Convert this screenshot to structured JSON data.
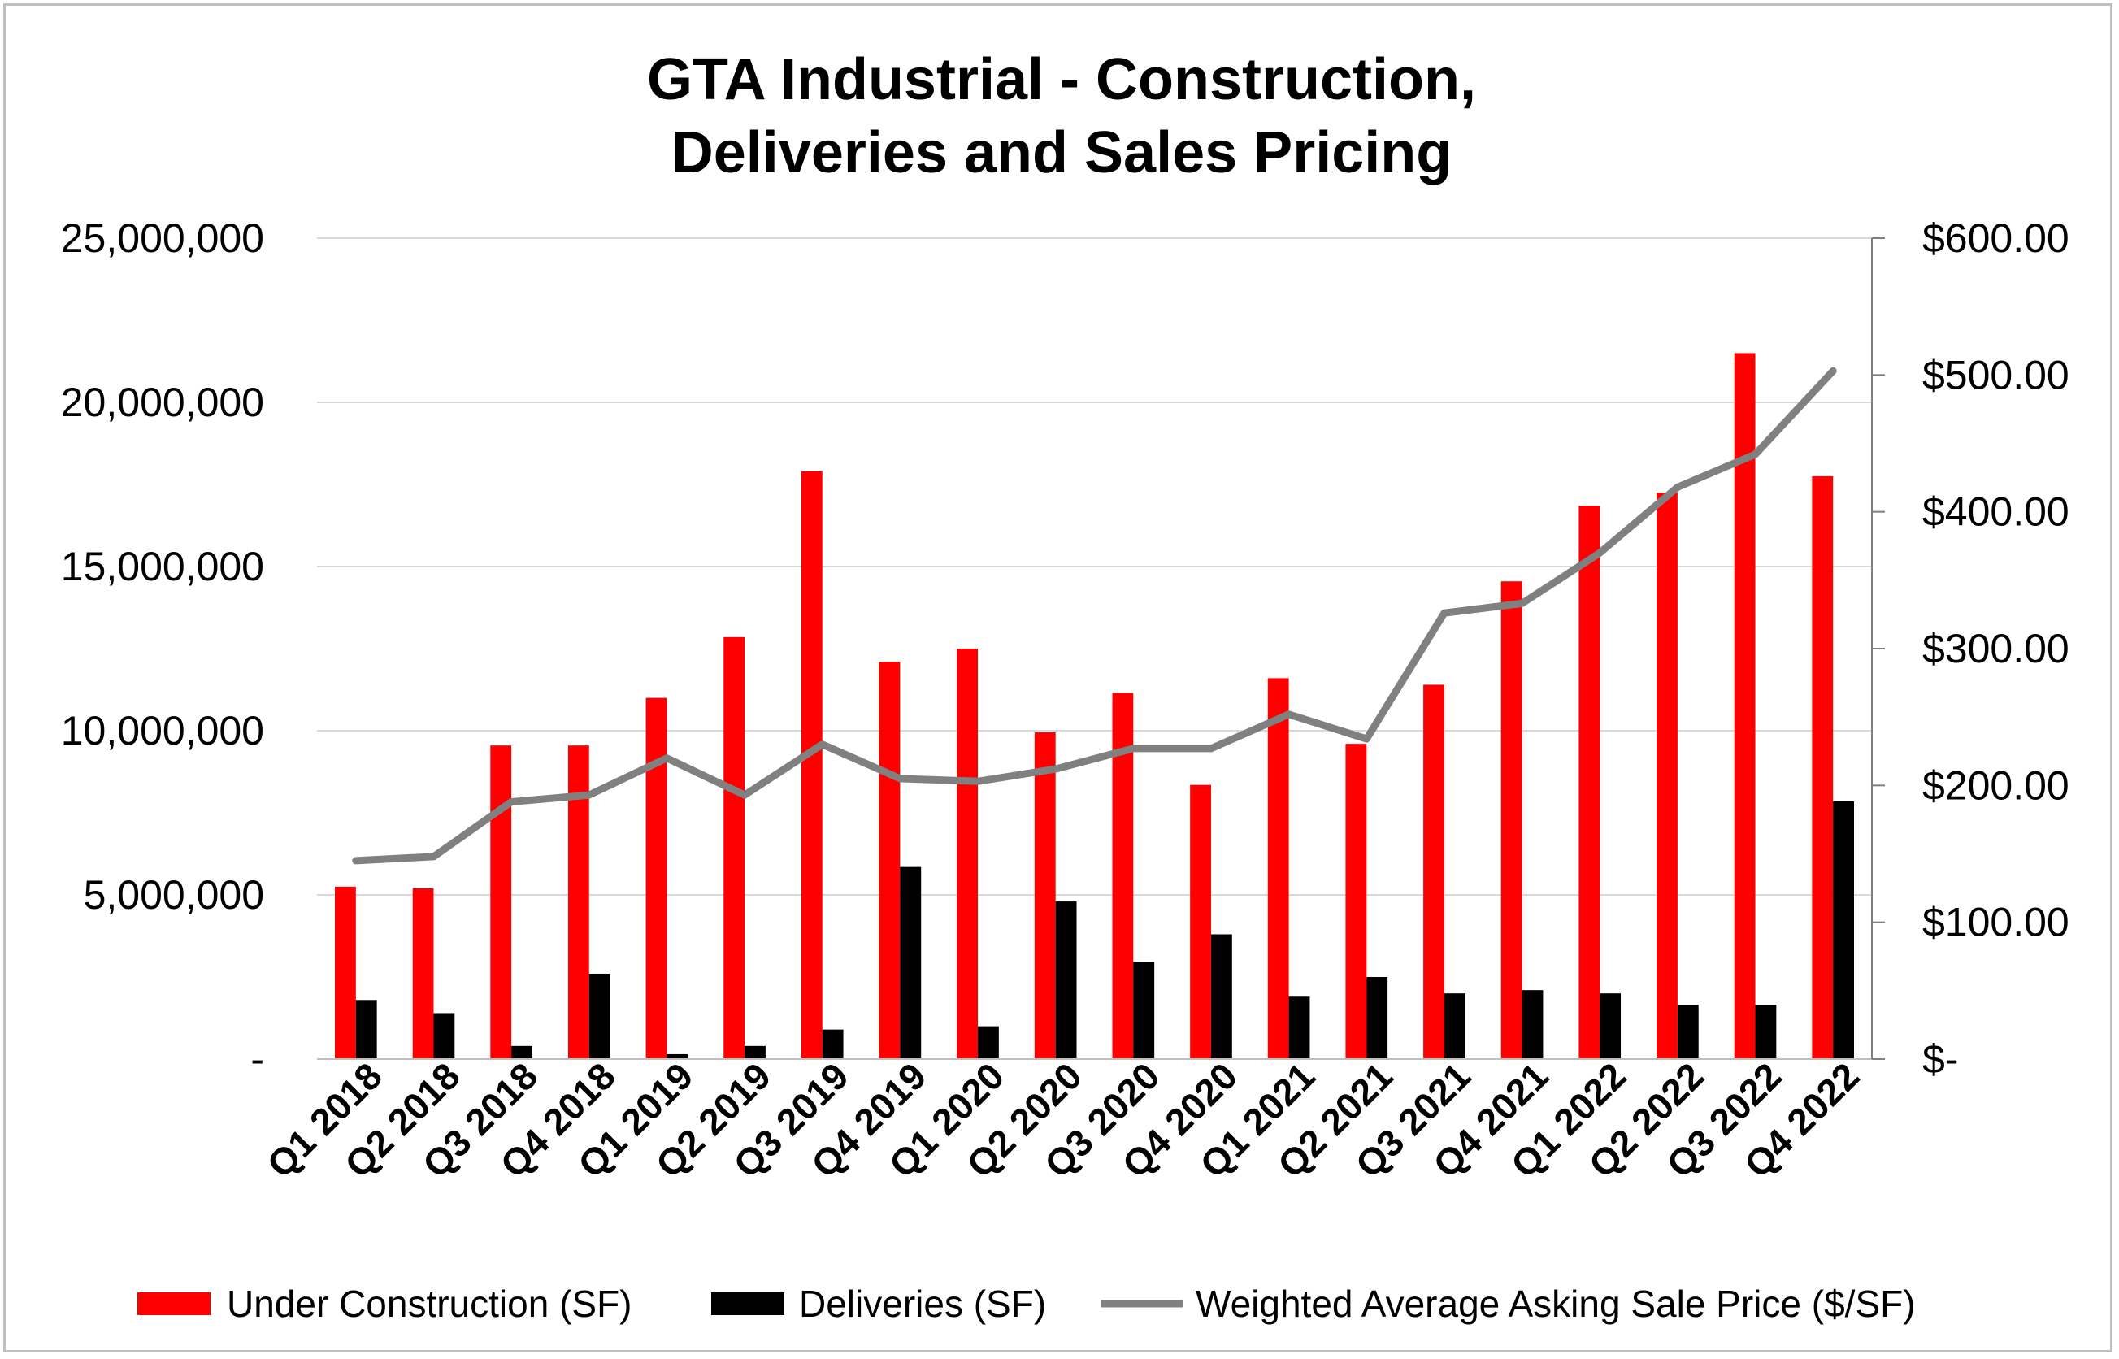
{
  "chart_data": {
    "type": "bar",
    "title_lines": [
      "GTA Industrial - Construction,",
      "Deliveries and Sales Pricing"
    ],
    "categories": [
      "Q1 2018",
      "Q2 2018",
      "Q3 2018",
      "Q4 2018",
      "Q1 2019",
      "Q2 2019",
      "Q3 2019",
      "Q4 2019",
      "Q1 2020",
      "Q2 2020",
      "Q3 2020",
      "Q4 2020",
      "Q1 2021",
      "Q2 2021",
      "Q3 2021",
      "Q4 2021",
      "Q1 2022",
      "Q2 2022",
      "Q3 2022",
      "Q4 2022"
    ],
    "series": [
      {
        "name": "Under Construction (SF)",
        "type": "bar",
        "axis": "left",
        "color": "#ff0000",
        "values": [
          5250000,
          5200000,
          9550000,
          9550000,
          11000000,
          12850000,
          17900000,
          12100000,
          12500000,
          9950000,
          11150000,
          8350000,
          11600000,
          9600000,
          11400000,
          14550000,
          16850000,
          17250000,
          21500000,
          17750000
        ]
      },
      {
        "name": "Deliveries (SF)",
        "type": "bar",
        "axis": "left",
        "color": "#000000",
        "values": [
          1800000,
          1400000,
          400000,
          2600000,
          150000,
          400000,
          900000,
          5850000,
          1000000,
          4800000,
          2950000,
          3800000,
          1900000,
          2500000,
          2000000,
          2100000,
          2000000,
          1650000,
          1650000,
          7850000
        ]
      },
      {
        "name": "Weighted Average Asking Sale Price ($/SF)",
        "type": "line",
        "axis": "right",
        "color": "#808080",
        "values": [
          145,
          148,
          188,
          193,
          220,
          193,
          230,
          205,
          203,
          212,
          227,
          227,
          252,
          234,
          326,
          333,
          370,
          418,
          442,
          503
        ]
      }
    ],
    "y_left": {
      "min": 0,
      "max": 25000000,
      "ticks": [
        0,
        5000000,
        10000000,
        15000000,
        20000000,
        25000000
      ],
      "tick_labels": [
        "-",
        "5,000,000",
        "10,000,000",
        "15,000,000",
        "20,000,000",
        "25,000,000"
      ]
    },
    "y_right": {
      "min": 0,
      "max": 600,
      "ticks": [
        0,
        100,
        200,
        300,
        400,
        500,
        600
      ],
      "tick_labels": [
        "$-",
        "$100.00",
        "$200.00",
        "$300.00",
        "$400.00",
        "$500.00",
        "$600.00"
      ]
    },
    "grid": true,
    "legend_position": "bottom"
  }
}
